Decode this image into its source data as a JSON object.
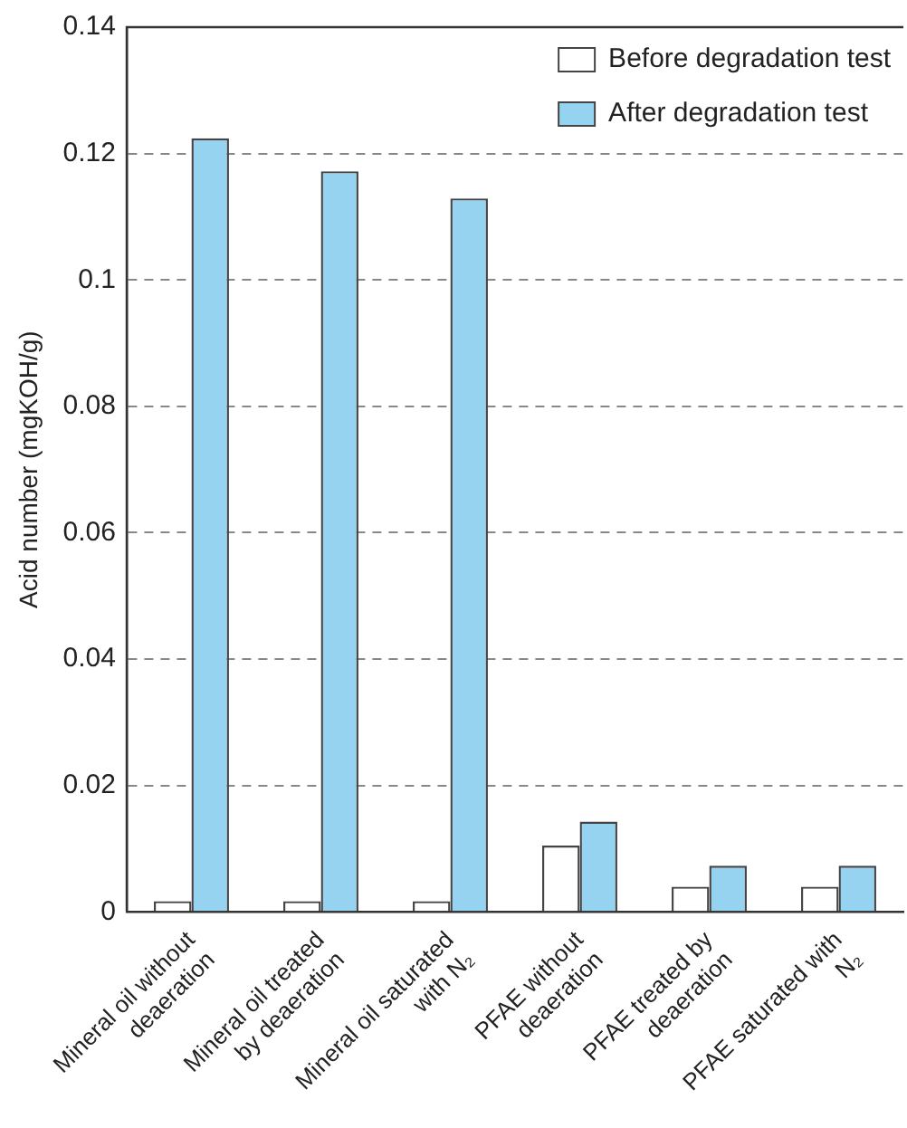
{
  "chart_data": {
    "type": "bar",
    "ylabel": "Acid number (mgKOH/g)",
    "categories": [
      "Mineral oil without deaeration",
      "Mineral oil treated by deaeration",
      "Mineral oil saturated with N₂",
      "PFAE without deaeration",
      "PFAE treated by deaeration",
      "PFAE saturated with N₂"
    ],
    "series": [
      {
        "name": "Before degradation test",
        "color": "#ffffff",
        "values": [
          0.0017,
          0.0017,
          0.0017,
          0.0105,
          0.004,
          0.004
        ]
      },
      {
        "name": "After degradation test",
        "color": "#96d3f0",
        "values": [
          0.1224,
          0.1172,
          0.1129,
          0.0143,
          0.0073,
          0.0073
        ]
      }
    ],
    "ylim": [
      0,
      0.14
    ],
    "yticks": [
      0,
      0.02,
      0.04,
      0.06,
      0.08,
      0.1,
      0.12,
      0.14
    ],
    "grid": "y",
    "legend": "top right"
  }
}
